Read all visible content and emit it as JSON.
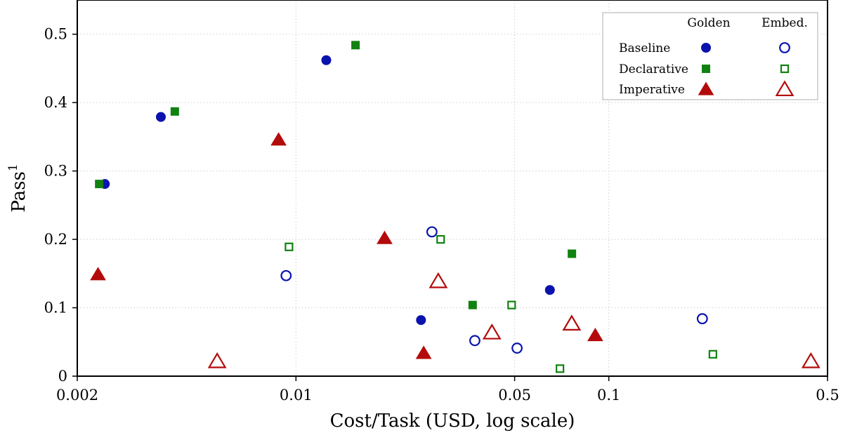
{
  "chart_data": {
    "type": "scatter",
    "xlabel": "Cost/Task (USD, log scale)",
    "ylabel": "Pass",
    "ylabel_superscript": "1",
    "x_scale": "log",
    "xlim": [
      0.002,
      0.5
    ],
    "ylim": [
      0,
      0.55
    ],
    "x_ticks": [
      {
        "value": 0.002,
        "label": "0.002"
      },
      {
        "value": 0.01,
        "label": "0.01"
      },
      {
        "value": 0.05,
        "label": "0.05"
      },
      {
        "value": 0.1,
        "label": "0.1"
      },
      {
        "value": 0.5,
        "label": "0.5"
      }
    ],
    "y_ticks": [
      {
        "value": 0,
        "label": "0"
      },
      {
        "value": 0.1,
        "label": "0.1"
      },
      {
        "value": 0.2,
        "label": "0.2"
      },
      {
        "value": 0.3,
        "label": "0.3"
      },
      {
        "value": 0.4,
        "label": "0.4"
      },
      {
        "value": 0.5,
        "label": "0.5"
      }
    ],
    "grid": "dotted",
    "legend": {
      "placement": "top-right",
      "column_headers": [
        "Golden",
        "Embed."
      ],
      "rows": [
        "Baseline",
        "Declarative",
        "Imperative"
      ]
    },
    "colors": {
      "Baseline": "#0a13ad",
      "Declarative": "#118211",
      "Imperative": "#b30b0b"
    },
    "markers": {
      "Baseline": "circle",
      "Declarative": "square",
      "Imperative": "triangle"
    },
    "series": [
      {
        "method": "Baseline",
        "variant": "Golden",
        "filled": true,
        "points": [
          [
            0.00245,
            0.281
          ],
          [
            0.0037,
            0.379
          ],
          [
            0.0125,
            0.462
          ],
          [
            0.0251,
            0.082
          ],
          [
            0.0648,
            0.126
          ]
        ]
      },
      {
        "method": "Baseline",
        "variant": "Embed.",
        "filled": false,
        "points": [
          [
            0.0093,
            0.147
          ],
          [
            0.0272,
            0.211
          ],
          [
            0.0373,
            0.052
          ],
          [
            0.0509,
            0.041
          ],
          [
            0.199,
            0.084
          ]
        ]
      },
      {
        "method": "Declarative",
        "variant": "Golden",
        "filled": true,
        "points": [
          [
            0.00235,
            0.281
          ],
          [
            0.0041,
            0.387
          ],
          [
            0.0155,
            0.484
          ],
          [
            0.0367,
            0.104
          ],
          [
            0.0762,
            0.179
          ]
        ]
      },
      {
        "method": "Declarative",
        "variant": "Embed.",
        "filled": false,
        "points": [
          [
            0.0095,
            0.189
          ],
          [
            0.029,
            0.2
          ],
          [
            0.0489,
            0.104
          ],
          [
            0.0698,
            0.011
          ],
          [
            0.2151,
            0.032
          ]
        ]
      },
      {
        "method": "Imperative",
        "variant": "Golden",
        "filled": true,
        "points": [
          [
            0.00233,
            0.149
          ],
          [
            0.0088,
            0.346
          ],
          [
            0.0192,
            0.202
          ],
          [
            0.0256,
            0.034
          ],
          [
            0.0905,
            0.06
          ]
        ]
      },
      {
        "method": "Imperative",
        "variant": "Embed.",
        "filled": false,
        "points": [
          [
            0.0056,
            0.022
          ],
          [
            0.0285,
            0.139
          ],
          [
            0.0423,
            0.064
          ],
          [
            0.0761,
            0.077
          ],
          [
            0.4424,
            0.022
          ]
        ]
      }
    ]
  }
}
